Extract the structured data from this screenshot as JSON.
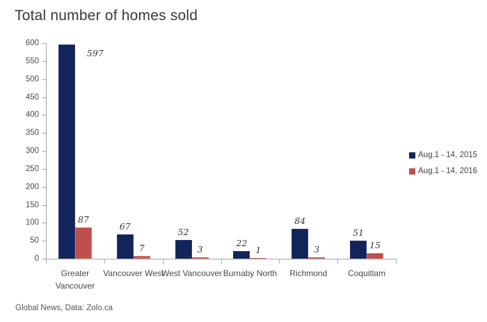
{
  "title": "Total number of homes sold",
  "footer": "Global News, Data: Zolo.ca",
  "colors": {
    "series_2015": "#12245a",
    "series_2016": "#bf4f4c",
    "axis": "#a6a6a6",
    "text": "#47474f"
  },
  "chart_data": {
    "type": "bar",
    "title": "Total number of homes sold",
    "categories": [
      "Greater Vancouver",
      "Vancouver West",
      "West Vancouver",
      "Burnaby North",
      "Richmond",
      "Coquitlam"
    ],
    "xtick_labels": [
      "Greater\nVancouver",
      "Vancouver West",
      "West Vancouver",
      "Burnaby North",
      "Richmond",
      "Coquitlam"
    ],
    "series": [
      {
        "name": "Aug.1 - 14, 2015",
        "color": "#12245a",
        "values": [
          597,
          67,
          52,
          22,
          84,
          51
        ]
      },
      {
        "name": "Aug.1 - 14, 2016",
        "color": "#bf4f4c",
        "values": [
          87,
          7,
          3,
          1,
          3,
          15
        ]
      }
    ],
    "ylim": [
      0,
      600
    ],
    "yticks": [
      0,
      50,
      100,
      150,
      200,
      250,
      300,
      350,
      400,
      450,
      500,
      550,
      600
    ],
    "grid": false,
    "legend_position": "right",
    "data_labels": true,
    "xlabel": "",
    "ylabel": ""
  }
}
